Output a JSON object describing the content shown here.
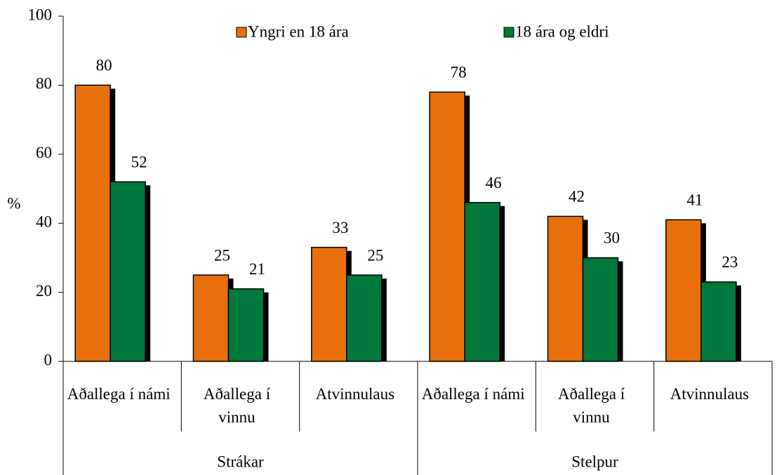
{
  "chart_data": {
    "type": "bar",
    "y_label": "%",
    "groups": [
      "Strákar",
      "Stelpur"
    ],
    "categories": [
      "Aðallega í námi",
      "Aðallega í vinnu",
      "Atvinnulaus",
      "Aðallega í námi",
      "Aðallega í vinnu",
      "Atvinnulaus"
    ],
    "series": [
      {
        "name": "Yngri en 18 ára",
        "color": "#e8700c",
        "values": [
          80,
          25,
          33,
          78,
          42,
          41
        ]
      },
      {
        "name": "18 ára og eldri",
        "color": "#00783c",
        "values": [
          52,
          21,
          25,
          46,
          30,
          23
        ]
      }
    ],
    "ylim": [
      0,
      100
    ],
    "yticks": [
      0,
      20,
      40,
      60,
      80,
      100
    ],
    "legend": "top",
    "shadow": true
  }
}
